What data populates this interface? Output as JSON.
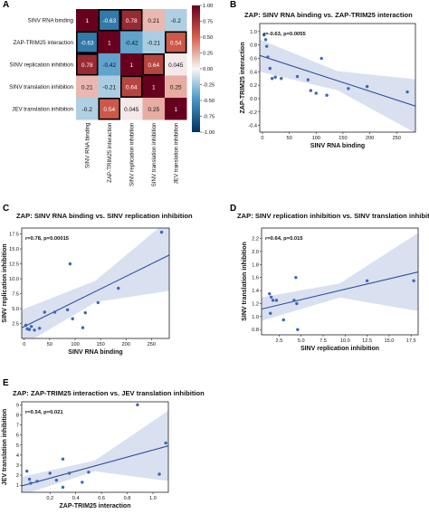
{
  "panel_letters": {
    "A": "A",
    "B": "B",
    "C": "C",
    "D": "D",
    "E": "E"
  },
  "chart_data": [
    {
      "panel": "A",
      "type": "heatmap",
      "labels": [
        "SINV RNA binding",
        "ZAP-TRIM25 interaction",
        "SINV replication inhibition",
        "SINV translation inhibition",
        "JEV translation inhibition"
      ],
      "matrix": [
        [
          null,
          -0.63,
          0.78,
          0.21,
          -0.2
        ],
        [
          -0.63,
          null,
          -0.42,
          -0.21,
          0.54
        ],
        [
          0.78,
          -0.42,
          null,
          0.64,
          0.045
        ],
        [
          0.21,
          -0.21,
          0.64,
          null,
          0.25
        ],
        [
          -0.2,
          0.54,
          0.045,
          0.25,
          null
        ]
      ],
      "cell_labels": [
        [
          "1",
          "-0.63",
          "0.78",
          "0.21",
          "-0.2"
        ],
        [
          "-0.63",
          "1",
          "-0.42",
          "-0.21",
          "0.54"
        ],
        [
          "0.78",
          "-0.42",
          "1",
          "0.64",
          "0.045"
        ],
        [
          "0.21",
          "-0.21",
          "0.64",
          "1",
          "0.25"
        ],
        [
          "-0.2",
          "0.54",
          "0.045",
          "0.25",
          "1"
        ]
      ],
      "highlighted": [
        [
          0,
          1
        ],
        [
          0,
          2
        ],
        [
          1,
          0
        ],
        [
          1,
          4
        ],
        [
          2,
          0
        ],
        [
          2,
          3
        ],
        [
          3,
          2
        ],
        [
          4,
          1
        ]
      ],
      "colorbar_ticks": [
        "1.00",
        "0.75",
        "0.50",
        "0.25",
        "0.00",
        "-0.25",
        "-0.50",
        "-0.75",
        "-1.00"
      ],
      "colorbar_range": [
        -1,
        1
      ]
    },
    {
      "panel": "B",
      "type": "scatter",
      "title": "ZAP: SINV RNA binding vs. ZAP-TRIM25 interaction",
      "xlabel": "SINV RNA binding",
      "ylabel": "ZAP-TRIM25 interaction",
      "annotation": "r=-0.63, p=0.0055",
      "xlim": [
        -5,
        285
      ],
      "ylim": [
        -0.5,
        1.12
      ],
      "xticks": [
        0,
        50,
        100,
        150,
        200,
        250
      ],
      "yticks": [
        -0.4,
        -0.2,
        0.0,
        0.2,
        0.4,
        0.6,
        0.8,
        1.0
      ],
      "ytick_labels": [
        "-0.4",
        "-0.2",
        "0.0",
        "0.2",
        "0.4",
        "0.6",
        "0.8",
        "1.0"
      ],
      "points": [
        [
          3,
          0.95
        ],
        [
          6,
          0.88
        ],
        [
          8,
          0.78
        ],
        [
          10,
          0.62
        ],
        [
          14,
          0.45
        ],
        [
          18,
          0.3
        ],
        [
          24,
          0.32
        ],
        [
          35,
          0.3
        ],
        [
          65,
          0.33
        ],
        [
          85,
          0.28
        ],
        [
          90,
          0.12
        ],
        [
          100,
          0.08
        ],
        [
          110,
          0.6
        ],
        [
          120,
          0.05
        ],
        [
          160,
          0.15
        ],
        [
          195,
          0.18
        ],
        [
          270,
          0.1
        ]
      ],
      "fit": [
        0.63,
        -0.0026
      ],
      "band_halfwidth_ends": [
        0.24,
        0.4
      ]
    },
    {
      "panel": "C",
      "type": "scatter",
      "title": "ZAP: SINV RNA binding vs. SINV replication inhibition",
      "xlabel": "SINV RNA binding",
      "ylabel": "SINV replication inhibition",
      "annotation": "r=0.78, p=0.00015",
      "xlim": [
        -5,
        285
      ],
      "ylim": [
        0,
        18.5
      ],
      "xticks": [
        0,
        50,
        100,
        150,
        200,
        250
      ],
      "yticks": [
        2.5,
        5.0,
        7.5,
        10.0,
        12.5,
        15.0,
        17.5
      ],
      "ytick_labels": [
        "2.5",
        "5.0",
        "7.5",
        "10.0",
        "12.5",
        "15.0",
        "17.5"
      ],
      "points": [
        [
          3,
          2.2
        ],
        [
          6,
          1.6
        ],
        [
          10,
          1.5
        ],
        [
          14,
          2.0
        ],
        [
          20,
          1.4
        ],
        [
          30,
          1.7
        ],
        [
          40,
          4.4
        ],
        [
          60,
          4.4
        ],
        [
          85,
          4.8
        ],
        [
          90,
          12.5
        ],
        [
          95,
          3.3
        ],
        [
          115,
          1.8
        ],
        [
          120,
          4.3
        ],
        [
          145,
          6.0
        ],
        [
          185,
          8.4
        ],
        [
          270,
          17.8
        ]
      ],
      "fit": [
        2.0,
        0.042
      ],
      "band_halfwidth_ends": [
        3.0,
        6.0
      ]
    },
    {
      "panel": "D",
      "type": "scatter",
      "title": "ZAP: SINV replication inhibition vs. SINV translation inhibition",
      "xlabel": "SINV replication inhibition",
      "ylabel": "SINV translation inhibition",
      "annotation": "r=0.64, p=0.015",
      "xlim": [
        0.5,
        18.3
      ],
      "ylim": [
        0.72,
        2.36
      ],
      "xticks": [
        2.5,
        5.0,
        7.5,
        10.0,
        12.5,
        15.0,
        17.5
      ],
      "xtick_labels": [
        "2.5",
        "5.0",
        "7.5",
        "10.0",
        "12.5",
        "15.0",
        "17.5"
      ],
      "yticks": [
        0.8,
        1.0,
        1.2,
        1.4,
        1.6,
        1.8,
        2.0,
        2.2
      ],
      "ytick_labels": [
        "0.8",
        "1.0",
        "1.2",
        "1.4",
        "1.6",
        "1.8",
        "2.0",
        "2.2"
      ],
      "points": [
        [
          1.4,
          1.35
        ],
        [
          1.5,
          1.05
        ],
        [
          1.8,
          1.25
        ],
        [
          2.2,
          1.25
        ],
        [
          3.0,
          0.95
        ],
        [
          4.2,
          1.25
        ],
        [
          4.4,
          1.6
        ],
        [
          4.5,
          1.2
        ],
        [
          4.6,
          0.8
        ],
        [
          12.5,
          1.55
        ],
        [
          17.8,
          1.55
        ],
        [
          1.6,
          1.3
        ]
      ],
      "fit": [
        1.1,
        0.032
      ],
      "band_halfwidth_ends": [
        0.18,
        0.6
      ]
    },
    {
      "panel": "E",
      "type": "scatter",
      "title": "ZAP: ZAP-TRIM25 interaction vs. JEV translation inhibition",
      "xlabel": "ZAP-TRIM25 interaction",
      "ylabel": "JEV translation inhibition",
      "annotation": "r=0.54, p=0.021",
      "xlim": [
        -0.02,
        1.12
      ],
      "ylim": [
        0.3,
        9.3
      ],
      "xticks": [
        0.2,
        0.4,
        0.6,
        0.8,
        1.0
      ],
      "xtick_labels": [
        "0.2",
        "0.4",
        "0.6",
        "0.8",
        "1.0"
      ],
      "yticks": [
        1,
        2,
        3,
        4,
        5,
        6,
        7,
        8,
        9
      ],
      "ytick_labels": [
        "1",
        "2",
        "3",
        "4",
        "5",
        "6",
        "7",
        "8",
        "9"
      ],
      "points": [
        [
          0.02,
          2.4
        ],
        [
          0.04,
          1.6
        ],
        [
          0.05,
          1.2
        ],
        [
          0.1,
          1.4
        ],
        [
          0.2,
          2.2
        ],
        [
          0.25,
          1.5
        ],
        [
          0.3,
          3.6
        ],
        [
          0.3,
          0.8
        ],
        [
          0.35,
          2.2
        ],
        [
          0.45,
          1.3
        ],
        [
          0.5,
          2.3
        ],
        [
          0.88,
          9.0
        ],
        [
          1.05,
          2.1
        ],
        [
          1.1,
          5.2
        ]
      ],
      "fit": [
        1.0,
        3.5
      ],
      "band_halfwidth_ends": [
        0.9,
        3.5
      ]
    }
  ]
}
